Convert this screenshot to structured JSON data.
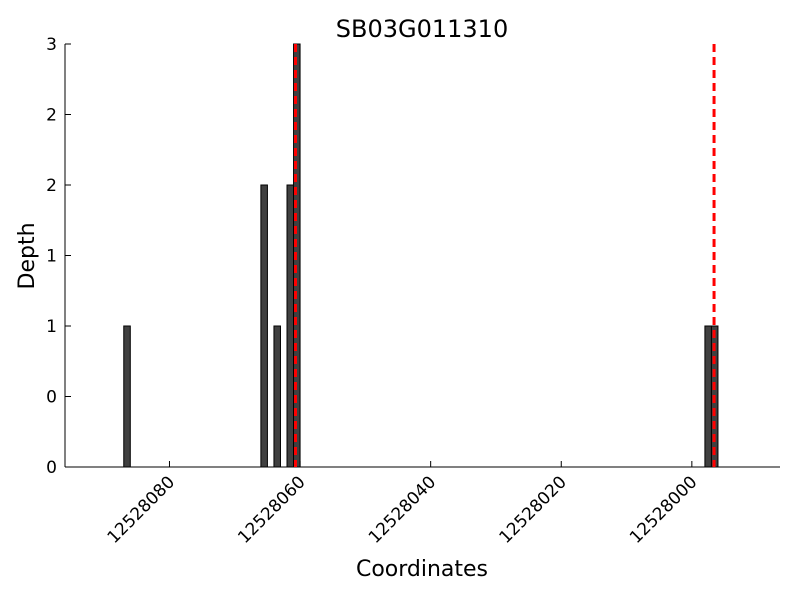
{
  "chart_data": {
    "type": "bar",
    "title": "SB03G011310",
    "xlabel": "Coordinates",
    "ylabel": "Depth",
    "x": [
      12528087,
      12528066,
      12528064,
      12528062,
      12528061,
      12527998,
      12527997
    ],
    "values": [
      1,
      2,
      1,
      2,
      3,
      1,
      1
    ],
    "color": "#404040",
    "xlim": [
      12528096,
      12527986.5
    ],
    "xticks": [
      12528080,
      12528060,
      12528040,
      12528020,
      12528000
    ],
    "ylim": [
      0,
      3
    ],
    "yticks": [
      {
        "value": 0,
        "label": "0"
      },
      {
        "value": 0.5,
        "label": "0"
      },
      {
        "value": 1,
        "label": "1"
      },
      {
        "value": 1.5,
        "label": "1"
      },
      {
        "value": 2,
        "label": "2"
      },
      {
        "value": 2.5,
        "label": "2"
      },
      {
        "value": 3,
        "label": "3"
      }
    ],
    "markers": [
      12528060.7,
      12527996.6
    ],
    "marker_color": "#ff0000",
    "grid": false
  }
}
